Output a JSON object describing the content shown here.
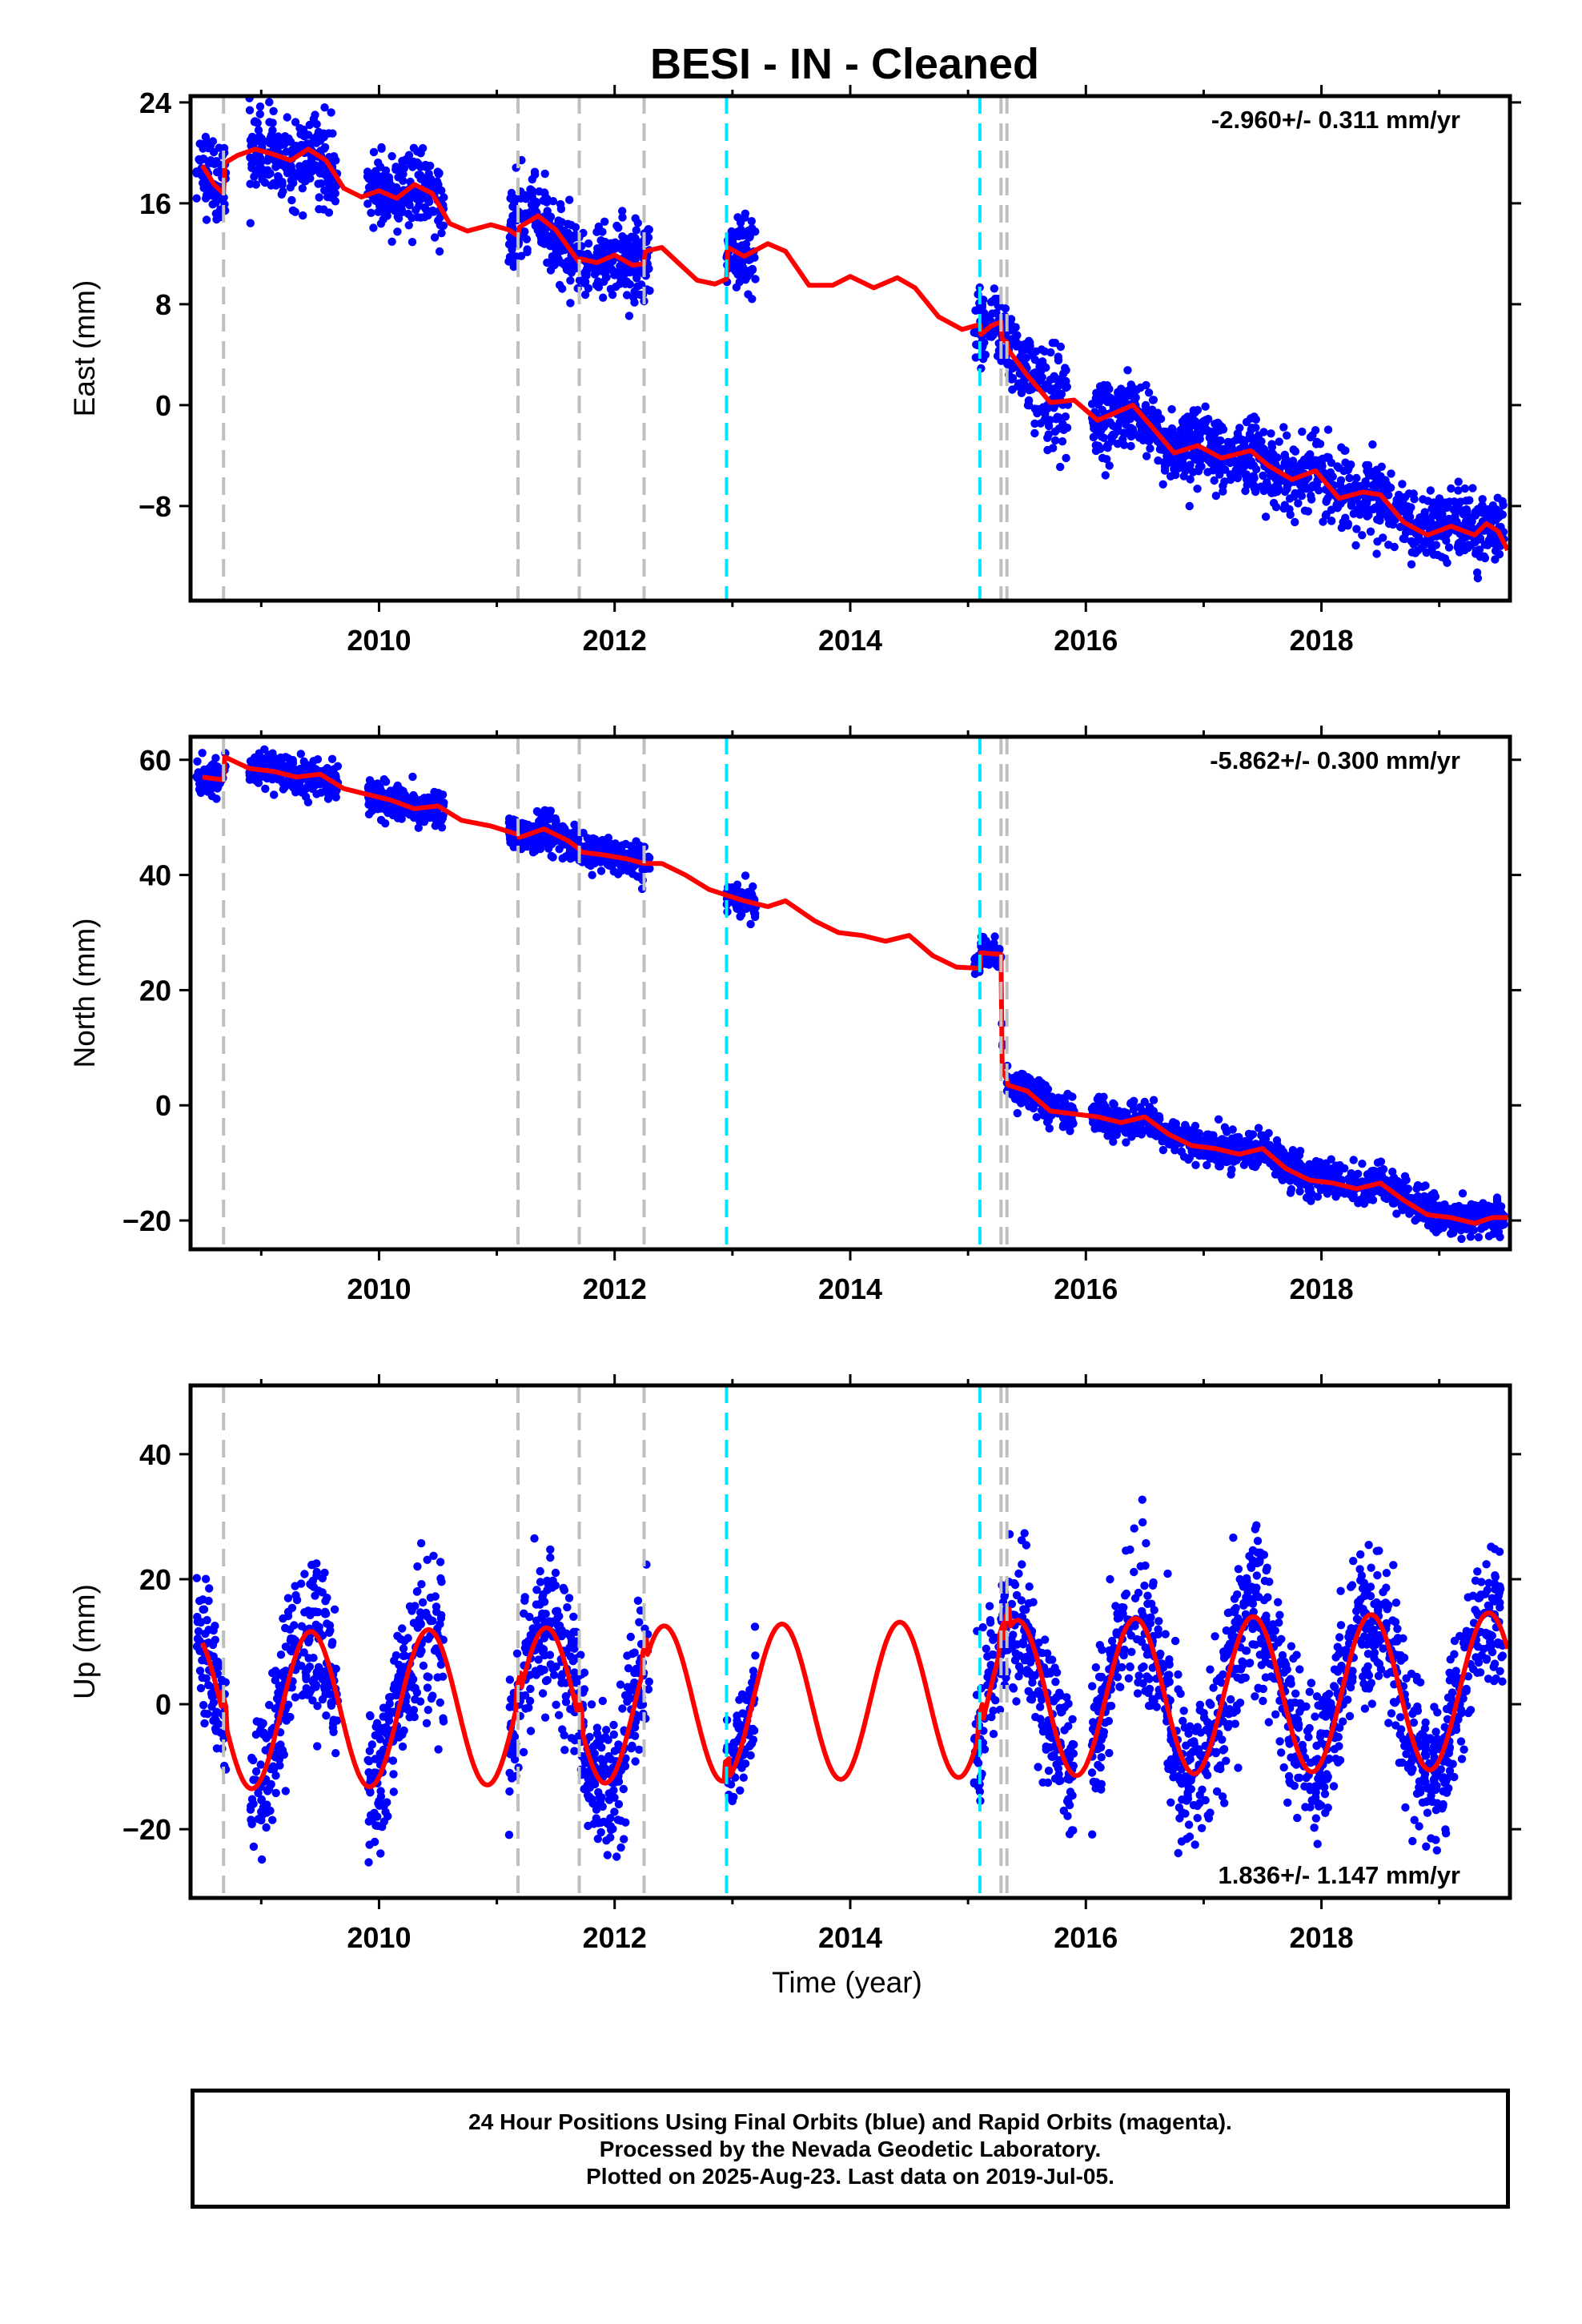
{
  "title": "BESI  - IN - Cleaned",
  "xlabel": "Time (year)",
  "footer": {
    "line1": "24 Hour Positions Using Final Orbits (blue) and Rapid Orbits (magenta).",
    "line2": "Processed by the Nevada Geodetic Laboratory.",
    "line3": "Plotted on 2025-Aug-23. Last data on 2019-Jul-05."
  },
  "colors": {
    "points": "#0000ff",
    "model": "#ff0000",
    "gray_break": "#bfbfbf",
    "cyan_break": "#00e5ff"
  },
  "chart_data": [
    {
      "type": "scatter",
      "component": "east",
      "ylabel": "East (mm)",
      "rate_text": "-2.960+/- 0.311 mm/yr",
      "xlim": [
        2008.4,
        2019.6
      ],
      "ylim": [
        -15.5,
        24.5
      ],
      "yticks": [
        "24",
        "16",
        "8",
        "0",
        "−8"
      ],
      "ytick_values": [
        24,
        16,
        8,
        0,
        -8
      ],
      "xticks": [
        "2010",
        "2012",
        "2014",
        "2016",
        "2018"
      ],
      "xtick_values": [
        2010,
        2012,
        2014,
        2016,
        2018
      ],
      "gray_breaks": [
        2008.68,
        2011.18,
        2011.7,
        2012.25,
        2015.28,
        2015.33
      ],
      "cyan_breaks": [
        2012.95,
        2015.1
      ],
      "model": [
        [
          2008.5,
          19.0
        ],
        [
          2008.6,
          17.5
        ],
        [
          2008.68,
          16.8
        ],
        [
          2008.69,
          19.2
        ],
        [
          2008.8,
          19.8
        ],
        [
          2008.95,
          20.3
        ],
        [
          2009.1,
          19.9
        ],
        [
          2009.25,
          19.4
        ],
        [
          2009.4,
          20.3
        ],
        [
          2009.55,
          19.4
        ],
        [
          2009.7,
          17.2
        ],
        [
          2009.85,
          16.5
        ],
        [
          2010.0,
          17.0
        ],
        [
          2010.15,
          16.4
        ],
        [
          2010.3,
          17.5
        ],
        [
          2010.45,
          16.8
        ],
        [
          2010.6,
          14.4
        ],
        [
          2010.75,
          13.8
        ],
        [
          2010.95,
          14.3
        ],
        [
          2011.1,
          13.9
        ],
        [
          2011.18,
          13.4
        ],
        [
          2011.19,
          14.1
        ],
        [
          2011.35,
          15.0
        ],
        [
          2011.5,
          13.9
        ],
        [
          2011.7,
          11.3
        ],
        [
          2011.71,
          11.6
        ],
        [
          2011.85,
          11.3
        ],
        [
          2012.0,
          11.9
        ],
        [
          2012.15,
          11.1
        ],
        [
          2012.25,
          11.2
        ],
        [
          2012.26,
          12.2
        ],
        [
          2012.4,
          12.5
        ],
        [
          2012.55,
          11.2
        ],
        [
          2012.7,
          9.9
        ],
        [
          2012.85,
          9.6
        ],
        [
          2012.95,
          10.0
        ],
        [
          2012.96,
          12.5
        ],
        [
          2013.1,
          11.8
        ],
        [
          2013.3,
          12.8
        ],
        [
          2013.45,
          12.2
        ],
        [
          2013.65,
          9.5
        ],
        [
          2013.85,
          9.5
        ],
        [
          2014.0,
          10.2
        ],
        [
          2014.2,
          9.3
        ],
        [
          2014.4,
          10.1
        ],
        [
          2014.55,
          9.3
        ],
        [
          2014.75,
          7.0
        ],
        [
          2014.95,
          6.0
        ],
        [
          2015.1,
          6.4
        ],
        [
          2015.11,
          5.6
        ],
        [
          2015.2,
          6.3
        ],
        [
          2015.28,
          6.6
        ],
        [
          2015.29,
          5.2
        ],
        [
          2015.33,
          5.0
        ],
        [
          2015.34,
          4.4
        ],
        [
          2015.5,
          2.4
        ],
        [
          2015.7,
          0.2
        ],
        [
          2015.9,
          0.4
        ],
        [
          2016.1,
          -1.2
        ],
        [
          2016.2,
          -0.8
        ],
        [
          2016.4,
          0.0
        ],
        [
          2016.55,
          -1.6
        ],
        [
          2016.75,
          -3.8
        ],
        [
          2016.95,
          -3.2
        ],
        [
          2017.15,
          -4.2
        ],
        [
          2017.4,
          -3.6
        ],
        [
          2017.55,
          -4.8
        ],
        [
          2017.75,
          -5.9
        ],
        [
          2017.95,
          -5.2
        ],
        [
          2018.15,
          -7.4
        ],
        [
          2018.35,
          -6.9
        ],
        [
          2018.5,
          -7.1
        ],
        [
          2018.7,
          -9.3
        ],
        [
          2018.9,
          -10.3
        ],
        [
          2019.1,
          -9.6
        ],
        [
          2019.3,
          -10.3
        ],
        [
          2019.4,
          -9.4
        ],
        [
          2019.5,
          -10.0
        ],
        [
          2019.58,
          -11.5
        ]
      ],
      "segments": [
        {
          "t0": 2008.45,
          "t1": 2008.7,
          "y0": 19.0,
          "y1": 18.5,
          "noise": 1.6
        },
        {
          "t0": 2008.9,
          "t1": 2009.65,
          "y0": 19.5,
          "y1": 18.0,
          "noise": 1.6
        },
        {
          "t0": 2009.9,
          "t1": 2010.55,
          "y0": 16.5,
          "y1": 16.8,
          "noise": 1.5
        },
        {
          "t0": 2011.1,
          "t1": 2011.7,
          "y0": 15.5,
          "y1": 12.0,
          "noise": 1.6
        },
        {
          "t0": 2011.7,
          "t1": 2012.3,
          "y0": 11.0,
          "y1": 12.0,
          "noise": 1.5
        },
        {
          "t0": 2012.95,
          "t1": 2013.2,
          "y0": 11.5,
          "y1": 12.0,
          "noise": 1.4
        },
        {
          "t0": 2015.05,
          "t1": 2015.5,
          "y0": 6.5,
          "y1": 3.5,
          "noise": 1.4
        },
        {
          "t0": 2015.5,
          "t1": 2015.85,
          "y0": 2.5,
          "y1": 0.0,
          "noise": 2.0
        },
        {
          "t0": 2016.05,
          "t1": 2019.55,
          "y0": -0.5,
          "y1": -10.5,
          "noise": 1.4
        }
      ]
    },
    {
      "type": "scatter",
      "component": "north",
      "ylabel": "North (mm)",
      "rate_text": "-5.862+/- 0.300 mm/yr",
      "xlim": [
        2008.4,
        2019.6
      ],
      "ylim": [
        -25,
        64
      ],
      "yticks": [
        "60",
        "40",
        "20",
        "0",
        "−20"
      ],
      "ytick_values": [
        60,
        40,
        20,
        0,
        -20
      ],
      "xticks": [
        "2010",
        "2012",
        "2014",
        "2016",
        "2018"
      ],
      "xtick_values": [
        2010,
        2012,
        2014,
        2016,
        2018
      ],
      "gray_breaks": [
        2008.68,
        2011.18,
        2011.7,
        2012.25,
        2015.28,
        2015.33
      ],
      "cyan_breaks": [
        2012.95,
        2015.1
      ],
      "model": [
        [
          2008.5,
          57.0
        ],
        [
          2008.68,
          56.5
        ],
        [
          2008.69,
          60.5
        ],
        [
          2008.9,
          58.5
        ],
        [
          2009.1,
          58.0
        ],
        [
          2009.3,
          57.0
        ],
        [
          2009.5,
          57.5
        ],
        [
          2009.7,
          55.0
        ],
        [
          2009.9,
          54.0
        ],
        [
          2010.1,
          53.0
        ],
        [
          2010.3,
          51.5
        ],
        [
          2010.5,
          52.0
        ],
        [
          2010.7,
          49.5
        ],
        [
          2010.95,
          48.5
        ],
        [
          2011.18,
          47.0
        ],
        [
          2011.19,
          46.5
        ],
        [
          2011.4,
          48.0
        ],
        [
          2011.6,
          46.0
        ],
        [
          2011.7,
          44.5
        ],
        [
          2011.71,
          44.0
        ],
        [
          2011.9,
          43.5
        ],
        [
          2012.1,
          42.8
        ],
        [
          2012.25,
          42.0
        ],
        [
          2012.4,
          42.0
        ],
        [
          2012.6,
          40.0
        ],
        [
          2012.8,
          37.5
        ],
        [
          2012.95,
          36.5
        ],
        [
          2013.1,
          35.5
        ],
        [
          2013.3,
          34.5
        ],
        [
          2013.45,
          35.5
        ],
        [
          2013.7,
          32.0
        ],
        [
          2013.9,
          30.0
        ],
        [
          2014.1,
          29.5
        ],
        [
          2014.3,
          28.5
        ],
        [
          2014.5,
          29.5
        ],
        [
          2014.7,
          26.0
        ],
        [
          2014.9,
          24.0
        ],
        [
          2015.1,
          23.8
        ],
        [
          2015.11,
          26.5
        ],
        [
          2015.28,
          26.2
        ],
        [
          2015.29,
          6.0
        ],
        [
          2015.33,
          4.5
        ],
        [
          2015.34,
          3.5
        ],
        [
          2015.5,
          2.5
        ],
        [
          2015.7,
          -1.0
        ],
        [
          2015.9,
          -1.5
        ],
        [
          2016.1,
          -2.0
        ],
        [
          2016.3,
          -3.0
        ],
        [
          2016.5,
          -2.0
        ],
        [
          2016.7,
          -5.0
        ],
        [
          2016.9,
          -7.0
        ],
        [
          2017.1,
          -7.5
        ],
        [
          2017.3,
          -8.5
        ],
        [
          2017.5,
          -7.5
        ],
        [
          2017.7,
          -11.0
        ],
        [
          2017.9,
          -13.0
        ],
        [
          2018.1,
          -13.5
        ],
        [
          2018.3,
          -14.5
        ],
        [
          2018.5,
          -13.5
        ],
        [
          2018.7,
          -16.5
        ],
        [
          2018.9,
          -19.0
        ],
        [
          2019.1,
          -19.5
        ],
        [
          2019.3,
          -20.5
        ],
        [
          2019.45,
          -19.5
        ],
        [
          2019.58,
          -19.5
        ]
      ],
      "segments": [
        {
          "t0": 2008.45,
          "t1": 2008.7,
          "y0": 57.5,
          "y1": 56.5,
          "noise": 1.5
        },
        {
          "t0": 2008.9,
          "t1": 2009.65,
          "y0": 58.5,
          "y1": 56.0,
          "noise": 1.5
        },
        {
          "t0": 2009.9,
          "t1": 2010.55,
          "y0": 53.5,
          "y1": 51.0,
          "noise": 1.5
        },
        {
          "t0": 2011.1,
          "t1": 2011.7,
          "y0": 47.0,
          "y1": 46.0,
          "noise": 1.6
        },
        {
          "t0": 2011.7,
          "t1": 2012.3,
          "y0": 44.0,
          "y1": 42.5,
          "noise": 1.5
        },
        {
          "t0": 2012.95,
          "t1": 2013.2,
          "y0": 36.0,
          "y1": 34.5,
          "noise": 1.2
        },
        {
          "t0": 2015.05,
          "t1": 2015.3,
          "y0": 26.0,
          "y1": 26.0,
          "noise": 1.2
        },
        {
          "t0": 2015.33,
          "t1": 2015.9,
          "y0": 5.0,
          "y1": 0.0,
          "noise": 1.5
        },
        {
          "t0": 2016.05,
          "t1": 2019.55,
          "y0": -1.0,
          "y1": -19.5,
          "noise": 1.5
        }
      ]
    },
    {
      "type": "scatter",
      "component": "up",
      "ylabel": "Up (mm)",
      "rate_text": "1.836+/- 1.147 mm/yr",
      "xlim": [
        2008.4,
        2019.6
      ],
      "ylim": [
        -31,
        51
      ],
      "yticks": [
        "40",
        "20",
        "0",
        "−20"
      ],
      "ytick_values": [
        40,
        20,
        0,
        -20
      ],
      "xticks": [
        "2010",
        "2012",
        "2014",
        "2016",
        "2018"
      ],
      "xtick_values": [
        2010,
        2012,
        2014,
        2016,
        2018
      ],
      "gray_breaks": [
        2008.68,
        2011.18,
        2011.7,
        2012.25,
        2015.28,
        2015.33
      ],
      "cyan_breaks": [
        2012.95,
        2015.1
      ],
      "model_seasonal": {
        "amplitude": 12.5,
        "peak_phase": 0.42,
        "slope": 0.3,
        "offset": 0.5,
        "ref": 2014.0
      },
      "segments": [
        {
          "t0": 2008.45,
          "t1": 2008.7,
          "amp": 1.0,
          "noise": 6
        },
        {
          "t0": 2008.9,
          "t1": 2009.65,
          "amp": 1.0,
          "noise": 6
        },
        {
          "t0": 2009.9,
          "t1": 2010.55,
          "amp": 1.0,
          "noise": 6
        },
        {
          "t0": 2011.1,
          "t1": 2011.7,
          "amp": 1.0,
          "noise": 6
        },
        {
          "t0": 2011.7,
          "t1": 2012.3,
          "amp": 1.0,
          "noise": 6
        },
        {
          "t0": 2012.95,
          "t1": 2013.2,
          "amp": 1.0,
          "noise": 4
        },
        {
          "t0": 2015.05,
          "t1": 2015.9,
          "amp": 1.0,
          "noise": 6
        },
        {
          "t0": 2016.05,
          "t1": 2019.55,
          "amp": 1.0,
          "noise": 6
        }
      ]
    }
  ]
}
